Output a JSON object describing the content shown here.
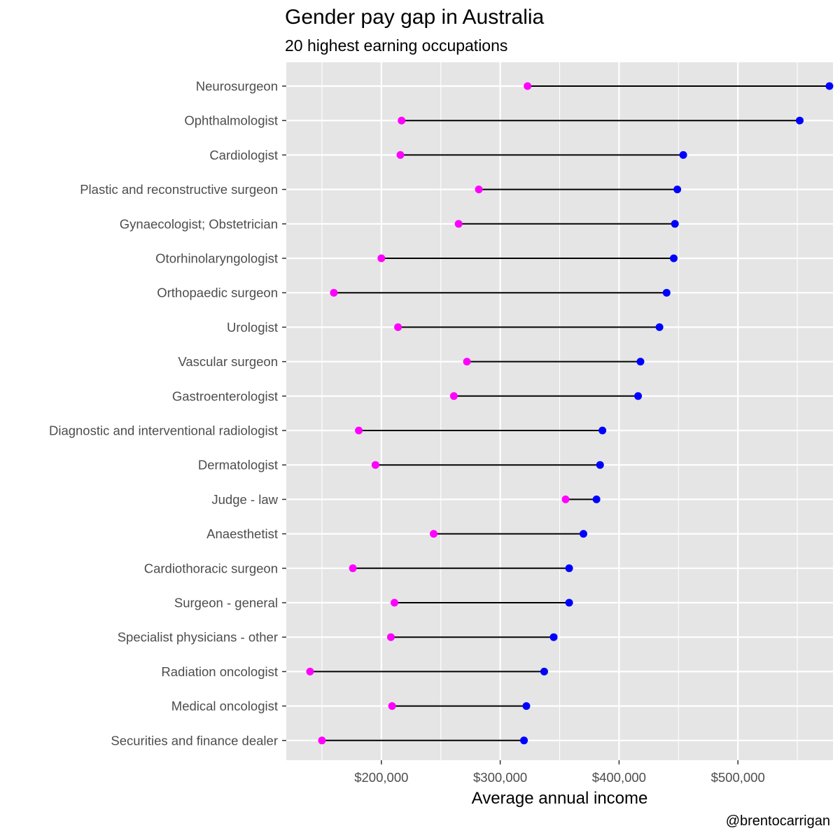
{
  "title": "Gender pay gap in Australia",
  "subtitle": "20 highest earning occupations",
  "credit": "@brentocarrigan",
  "colors": {
    "panel": "#e5e5e5",
    "grid": "#ffffff",
    "female": "#ff00ff",
    "male": "#0000ff",
    "segment": "#000000"
  },
  "chart_data": {
    "type": "dumbbell",
    "xlabel": "Average annual income",
    "ylabel": "",
    "xlim": [
      120000,
      580000
    ],
    "xticks": [
      200000,
      300000,
      400000,
      500000
    ],
    "xtick_labels": [
      "$200,000",
      "$300,000",
      "$400,000",
      "$500,000"
    ],
    "grid": true,
    "legend": "none",
    "categories": [
      "Neurosurgeon",
      "Ophthalmologist",
      "Cardiologist",
      "Plastic and reconstructive surgeon",
      "Gynaecologist; Obstetrician",
      "Otorhinolaryngologist",
      "Orthopaedic surgeon",
      "Urologist",
      "Vascular surgeon",
      "Gastroenterologist",
      "Diagnostic and interventional radiologist",
      "Dermatologist",
      "Judge - law",
      "Anaesthetist",
      "Cardiothoracic surgeon",
      "Surgeon - general",
      "Specialist physicians - other",
      "Radiation oncologist",
      "Medical oncologist",
      "Securities and finance dealer"
    ],
    "female": [
      323000,
      217000,
      216000,
      282000,
      265000,
      200000,
      160000,
      214000,
      272000,
      261000,
      181000,
      195000,
      355000,
      244000,
      176000,
      211000,
      208000,
      140000,
      209000,
      150000
    ],
    "male": [
      577000,
      552000,
      454000,
      449000,
      447000,
      446000,
      440000,
      434000,
      418000,
      416000,
      386000,
      384000,
      381000,
      370000,
      358000,
      358000,
      345000,
      337000,
      322000,
      320000
    ]
  }
}
